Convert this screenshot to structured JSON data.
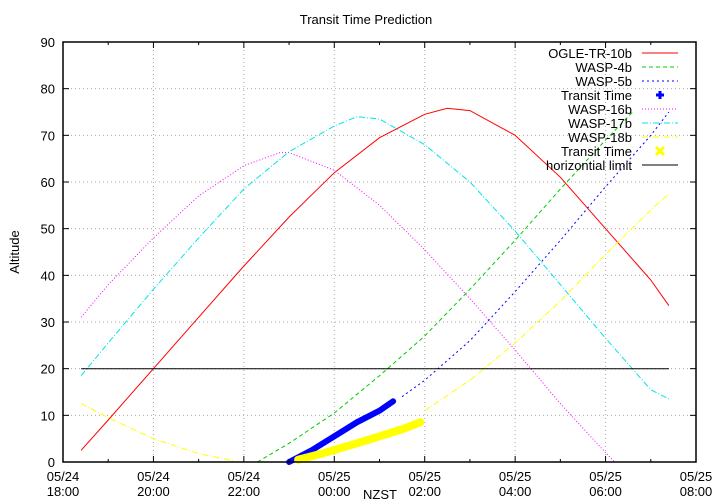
{
  "chart_data": {
    "type": "line",
    "title": "Transit Time Prediction",
    "xlabel": "NZST",
    "ylabel": "Altitude",
    "ylim": [
      0,
      90
    ],
    "xlim_hours": [
      18,
      32
    ],
    "grid": true,
    "legend_position": "top-right",
    "yticks": [
      0,
      10,
      20,
      30,
      40,
      50,
      60,
      70,
      80,
      90
    ],
    "xticks": [
      {
        "date": "05/24",
        "time": "18:00",
        "h": 18
      },
      {
        "date": "05/24",
        "time": "20:00",
        "h": 20
      },
      {
        "date": "05/24",
        "time": "22:00",
        "h": 22
      },
      {
        "date": "05/25",
        "time": "00:00",
        "h": 24
      },
      {
        "date": "05/25",
        "time": "02:00",
        "h": 26
      },
      {
        "date": "05/25",
        "time": "04:00",
        "h": 28
      },
      {
        "date": "05/25",
        "time": "06:00",
        "h": 30
      },
      {
        "date": "05/25",
        "time": "08:00",
        "h": 32
      }
    ],
    "series": [
      {
        "name": "OGLE-TR-10b",
        "color": "#ff0000",
        "dash": "",
        "width": 1,
        "points": [
          [
            18.4,
            2.5
          ],
          [
            19,
            9
          ],
          [
            20,
            20
          ],
          [
            21,
            31
          ],
          [
            22,
            42
          ],
          [
            23,
            52.5
          ],
          [
            24,
            62
          ],
          [
            25,
            69.5
          ],
          [
            26,
            74.5
          ],
          [
            26.5,
            75.8
          ],
          [
            27,
            75.3
          ],
          [
            28,
            70
          ],
          [
            29,
            61
          ],
          [
            30,
            50
          ],
          [
            31,
            39
          ],
          [
            31.4,
            33.5
          ]
        ]
      },
      {
        "name": "WASP-4b",
        "color": "#00cc00",
        "dash": "4,3",
        "width": 1,
        "points": [
          [
            22.3,
            0
          ],
          [
            23,
            4
          ],
          [
            24,
            10.5
          ],
          [
            25,
            18.5
          ],
          [
            26,
            27
          ],
          [
            27,
            37
          ],
          [
            28,
            47.5
          ],
          [
            29,
            58.5
          ],
          [
            30,
            69
          ],
          [
            30.6,
            75
          ]
        ]
      },
      {
        "name": "WASP-5b",
        "color": "#0000ff",
        "dash": "2,3",
        "width": 1,
        "points": [
          [
            25.5,
            14
          ],
          [
            26,
            17.5
          ],
          [
            27,
            26
          ],
          [
            28,
            36.5
          ],
          [
            29,
            47.5
          ],
          [
            30,
            59
          ],
          [
            31,
            70
          ],
          [
            31.4,
            75
          ]
        ]
      },
      {
        "name": "Transit Time",
        "color": "#0000ff",
        "dash": "",
        "width": 6,
        "marker": "plus",
        "points": [
          [
            23,
            0
          ],
          [
            23.5,
            2.5
          ],
          [
            24,
            5.5
          ],
          [
            24.5,
            8.5
          ],
          [
            25,
            11
          ],
          [
            25.3,
            13
          ]
        ]
      },
      {
        "name": "WASP-16b",
        "color": "#ff00ff",
        "dash": "1,2",
        "width": 1,
        "points": [
          [
            18.4,
            31
          ],
          [
            19,
            38
          ],
          [
            20,
            48
          ],
          [
            21,
            57
          ],
          [
            22,
            63.5
          ],
          [
            22.8,
            66.3
          ],
          [
            23,
            66.3
          ],
          [
            24,
            62.5
          ],
          [
            25,
            55
          ],
          [
            26,
            45.5
          ],
          [
            27,
            35
          ],
          [
            28,
            24
          ],
          [
            29,
            12.5
          ],
          [
            30,
            2
          ],
          [
            30.2,
            0
          ]
        ]
      },
      {
        "name": "WASP-17b",
        "color": "#00e5e5",
        "dash": "6,2,1,2",
        "width": 1,
        "points": [
          [
            18.4,
            18.5
          ],
          [
            19,
            25.5
          ],
          [
            20,
            37
          ],
          [
            21,
            48
          ],
          [
            22,
            58.5
          ],
          [
            23,
            66.5
          ],
          [
            24,
            72
          ],
          [
            24.5,
            74
          ],
          [
            25,
            73.5
          ],
          [
            26,
            68
          ],
          [
            27,
            60
          ],
          [
            28,
            49.5
          ],
          [
            29,
            38
          ],
          [
            30,
            26.5
          ],
          [
            31,
            15.5
          ],
          [
            31.4,
            13.5
          ]
        ]
      },
      {
        "name": "WASP-18b",
        "color": "#ffff00",
        "dash": "6,2,1,2",
        "width": 1,
        "points": [
          [
            18.4,
            12.5
          ],
          [
            19,
            9.5
          ],
          [
            20,
            5
          ],
          [
            21,
            1.8
          ],
          [
            21.8,
            0.2
          ],
          [
            26,
            11
          ],
          [
            27,
            17.5
          ],
          [
            28,
            25.5
          ],
          [
            29,
            34.5
          ],
          [
            30,
            44.5
          ],
          [
            31,
            54
          ],
          [
            31.4,
            57.5
          ]
        ]
      },
      {
        "name": "Transit Time",
        "color": "#ffff00",
        "dash": "",
        "width": 8,
        "marker": "cross",
        "points": [
          [
            23.2,
            0.5
          ],
          [
            23.8,
            2
          ],
          [
            24.5,
            4
          ],
          [
            25,
            5.5
          ],
          [
            25.5,
            7
          ],
          [
            25.9,
            8.5
          ]
        ]
      },
      {
        "name": "horizontial limit",
        "color": "#000000",
        "dash": "",
        "width": 1,
        "points": [
          [
            18.4,
            20
          ],
          [
            31.4,
            20
          ]
        ]
      }
    ]
  }
}
